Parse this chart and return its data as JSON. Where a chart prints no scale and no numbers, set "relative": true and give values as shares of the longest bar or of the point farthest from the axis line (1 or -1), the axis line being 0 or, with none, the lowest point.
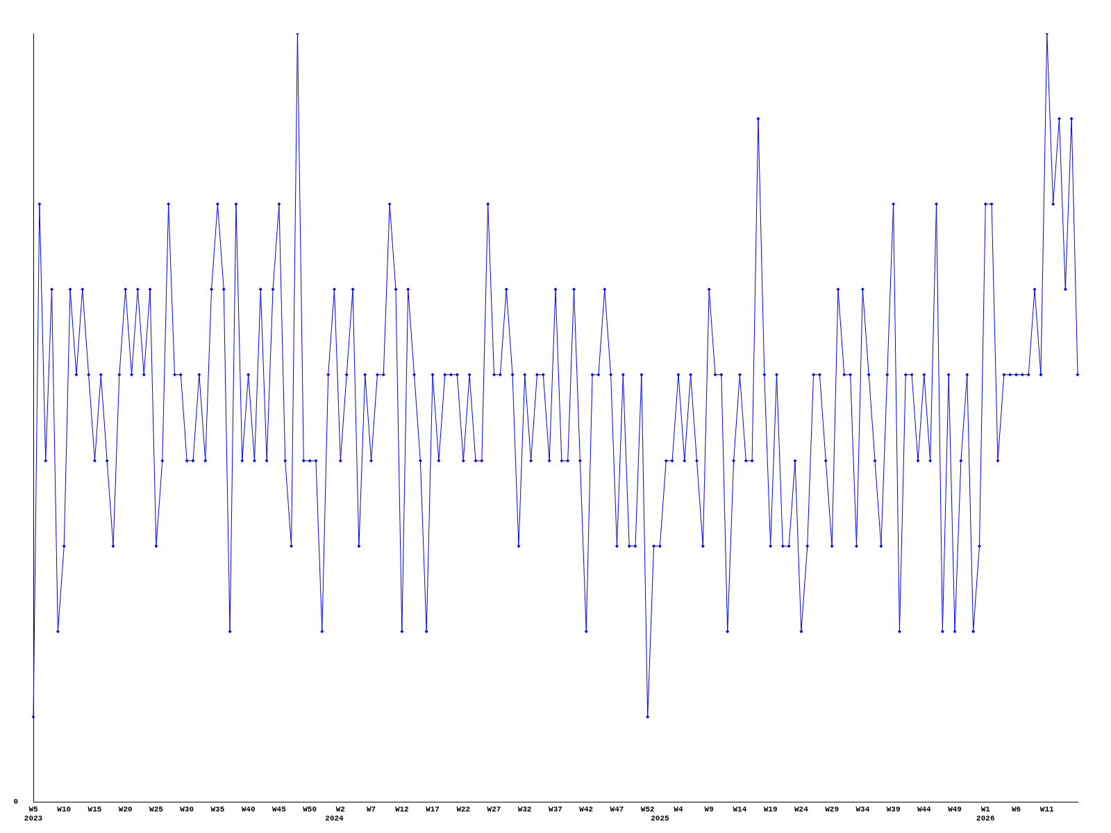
{
  "chart_data": {
    "type": "line",
    "relative": true,
    "color": "#0000ff",
    "marker": "diamond",
    "grid": false,
    "legend": false,
    "annotations": [
      "0"
    ],
    "categories": [
      "W5\n2023",
      null,
      null,
      null,
      null,
      "W10",
      null,
      null,
      null,
      null,
      "W15",
      null,
      null,
      null,
      null,
      "W20",
      null,
      null,
      null,
      null,
      "W25",
      null,
      null,
      null,
      null,
      "W30",
      null,
      null,
      null,
      null,
      "W35",
      null,
      null,
      null,
      null,
      "W40",
      null,
      null,
      null,
      null,
      "W45",
      null,
      null,
      null,
      null,
      "W50",
      null,
      null,
      null,
      "\n2024",
      "W2",
      null,
      null,
      null,
      null,
      "W7",
      null,
      null,
      null,
      null,
      "W12",
      null,
      null,
      null,
      null,
      "W17",
      null,
      null,
      null,
      null,
      "W22",
      null,
      null,
      null,
      null,
      "W27",
      null,
      null,
      null,
      null,
      "W32",
      null,
      null,
      null,
      null,
      "W37",
      null,
      null,
      null,
      null,
      "W42",
      null,
      null,
      null,
      null,
      "W47",
      null,
      null,
      null,
      null,
      "W52",
      null,
      "\n2025",
      null,
      null,
      "W4",
      null,
      null,
      null,
      null,
      "W9",
      null,
      null,
      null,
      null,
      "W14",
      null,
      null,
      null,
      null,
      "W19",
      null,
      null,
      null,
      null,
      "W24",
      null,
      null,
      null,
      null,
      "W29",
      null,
      null,
      null,
      null,
      "W34",
      null,
      null,
      null,
      null,
      "W39",
      null,
      null,
      null,
      null,
      "W44",
      null,
      null,
      null,
      null,
      "W49",
      null,
      null,
      null,
      null,
      "W1\n2026",
      null,
      null,
      null,
      null,
      "W6",
      null,
      null,
      null,
      null,
      "W11",
      null,
      null,
      null,
      null,
      null
    ],
    "values": [
      0.111,
      0.778,
      0.444,
      0.667,
      0.222,
      0.333,
      0.667,
      0.556,
      0.667,
      0.556,
      0.444,
      0.556,
      0.444,
      0.333,
      0.556,
      0.667,
      0.556,
      0.667,
      0.556,
      0.667,
      0.333,
      0.444,
      0.778,
      0.556,
      0.556,
      0.444,
      0.444,
      0.556,
      0.444,
      0.667,
      0.778,
      0.667,
      0.222,
      0.778,
      0.444,
      0.556,
      0.444,
      0.667,
      0.444,
      0.667,
      0.778,
      0.444,
      0.333,
      1,
      0.444,
      0.444,
      0.444,
      0.222,
      0.556,
      0.667,
      0.444,
      0.556,
      0.667,
      0.333,
      0.556,
      0.444,
      0.556,
      0.556,
      0.778,
      0.667,
      0.222,
      0.667,
      0.556,
      0.444,
      0.222,
      0.556,
      0.444,
      0.556,
      0.556,
      0.556,
      0.444,
      0.556,
      0.444,
      0.444,
      0.778,
      0.556,
      0.556,
      0.667,
      0.556,
      0.333,
      0.556,
      0.444,
      0.556,
      0.556,
      0.444,
      0.667,
      0.444,
      0.444,
      0.667,
      0.444,
      0.222,
      0.556,
      0.556,
      0.667,
      0.556,
      0.333,
      0.556,
      0.333,
      0.333,
      0.556,
      0.111,
      0.333,
      0.333,
      0.444,
      0.444,
      0.556,
      0.444,
      0.556,
      0.444,
      0.333,
      0.667,
      0.556,
      0.556,
      0.222,
      0.444,
      0.556,
      0.444,
      0.444,
      0.889,
      0.556,
      0.333,
      0.556,
      0.333,
      0.333,
      0.444,
      0.222,
      0.333,
      0.556,
      0.556,
      0.444,
      0.333,
      0.667,
      0.556,
      0.556,
      0.333,
      0.667,
      0.556,
      0.444,
      0.333,
      0.556,
      0.778,
      0.222,
      0.556,
      0.556,
      0.444,
      0.556,
      0.444,
      0.778,
      0.222,
      0.556,
      0.222,
      0.444,
      0.556,
      0.222,
      0.333,
      0.778,
      0.778,
      0.444,
      0.556,
      0.556,
      0.556,
      0.556,
      0.556,
      0.667,
      0.556,
      1,
      0.778,
      0.889,
      0.667,
      0.889,
      0.556
    ]
  }
}
